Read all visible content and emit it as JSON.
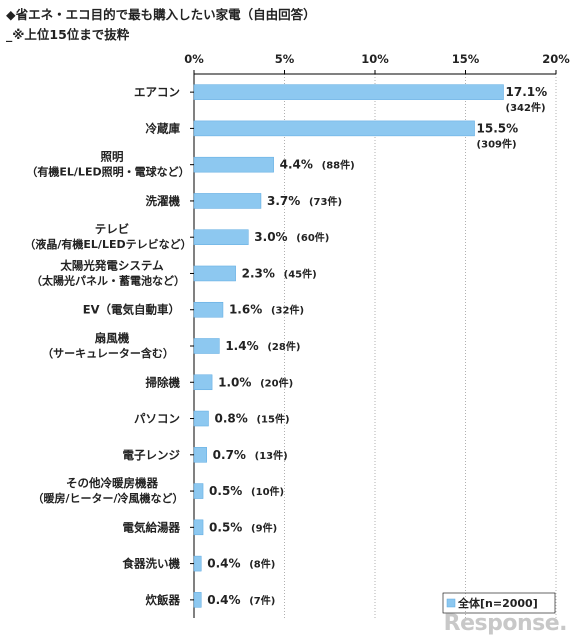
{
  "title": "◆省エネ・エコ目的で最も購入したい家電（自由回答）",
  "subtitle": "_※上位15位まで抜粋",
  "watermark": "Response.",
  "colors": {
    "bar": "#8dc8f0",
    "bar_stroke": "#5aa8e0",
    "axis": "#000000",
    "grid": "#b0b0b0"
  },
  "chart_data": {
    "type": "bar",
    "orientation": "horizontal",
    "xlim": [
      0,
      20
    ],
    "ticks": [
      "0%",
      "5%",
      "10%",
      "15%",
      "20%"
    ],
    "tick_values": [
      0,
      5,
      10,
      15,
      20
    ],
    "legend": "全体[n=2000]",
    "legend_position": "bottom-right",
    "grid": true,
    "categories": [
      [
        "エアコン"
      ],
      [
        "冷蔵庫"
      ],
      [
        "照明",
        "（有機EL/LED照明・電球など）"
      ],
      [
        "洗濯機"
      ],
      [
        "テレビ",
        "（液晶/有機EL/LEDテレビなど）"
      ],
      [
        "太陽光発電システム",
        "（太陽光パネル・蓄電池など）"
      ],
      [
        "EV（電気自動車）"
      ],
      [
        "扇風機",
        "（サーキュレーター含む）"
      ],
      [
        "掃除機"
      ],
      [
        "パソコン"
      ],
      [
        "電子レンジ"
      ],
      [
        "その他冷暖房機器",
        "（暖房/ヒーター/冷風機など）"
      ],
      [
        "電気給湯器"
      ],
      [
        "食器洗い機"
      ],
      [
        "炊飯器"
      ]
    ],
    "values": [
      17.1,
      15.5,
      4.4,
      3.7,
      3.0,
      2.3,
      1.6,
      1.4,
      1.0,
      0.8,
      0.7,
      0.5,
      0.5,
      0.4,
      0.4
    ],
    "value_labels": [
      "17.1%",
      "15.5%",
      "4.4%",
      "3.7%",
      "3.0%",
      "2.3%",
      "1.6%",
      "1.4%",
      "1.0%",
      "0.8%",
      "0.7%",
      "0.5%",
      "0.5%",
      "0.4%",
      "0.4%"
    ],
    "count_labels": [
      "(342件)",
      "(309件)",
      "(88件)",
      "(73件)",
      "(60件)",
      "(45件)",
      "(32件)",
      "(28件)",
      "(20件)",
      "(15件)",
      "(13件)",
      "(10件)",
      "(9件)",
      "(8件)",
      "(7件)"
    ]
  }
}
